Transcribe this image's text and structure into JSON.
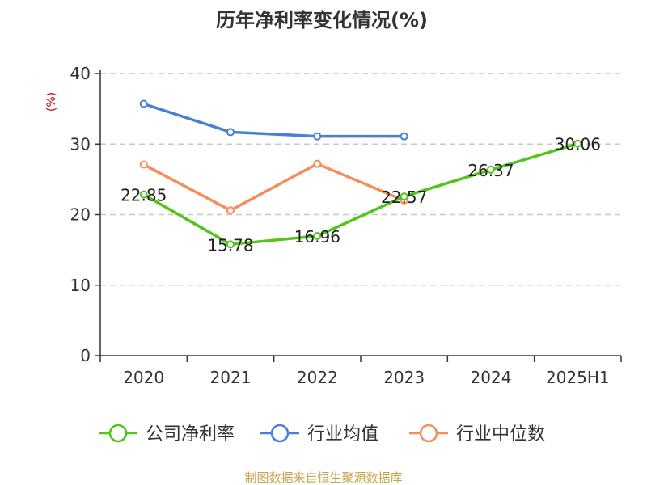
{
  "chart_data": {
    "type": "line",
    "title": "历年净利率变化情况(%)",
    "ylabel": "(%)",
    "xlabel": "",
    "categories": [
      "2020",
      "2021",
      "2022",
      "2023",
      "2024",
      "2025H1"
    ],
    "ylim": [
      0,
      40
    ],
    "yticks": [
      0,
      10,
      20,
      30,
      40
    ],
    "grid": true,
    "legend_position": "bottom",
    "series": [
      {
        "name": "公司净利率",
        "color": "#52c41a",
        "values": [
          22.85,
          15.78,
          16.96,
          22.57,
          26.37,
          30.06
        ],
        "labels": [
          "22.85",
          "15.78",
          "16.96",
          "22.57",
          "26.37",
          "30.06"
        ]
      },
      {
        "name": "行业均值",
        "color": "#4a7fd8",
        "values": [
          35.7,
          31.7,
          31.1,
          31.1,
          null,
          null
        ]
      },
      {
        "name": "行业中位数",
        "color": "#f68d5a",
        "values": [
          27.1,
          20.6,
          27.2,
          22.0,
          null,
          null
        ]
      }
    ]
  },
  "source": "制图数据来自恒生聚源数据库"
}
